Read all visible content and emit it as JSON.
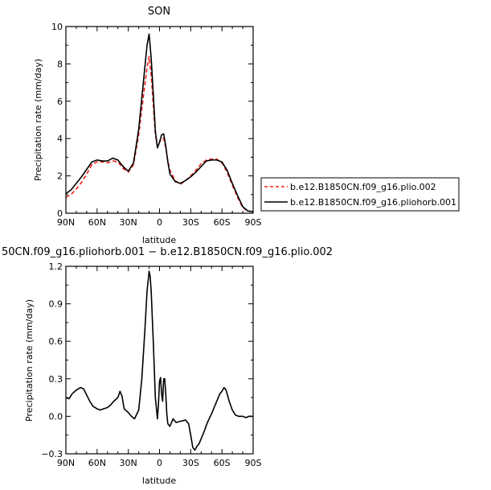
{
  "chart_data": [
    {
      "type": "line",
      "title": "SON",
      "xlabel": "latitude",
      "ylabel": "Precipitation rate (mm/day)",
      "xlim": [
        90,
        -90
      ],
      "ylim": [
        0,
        10
      ],
      "xticks": [
        90,
        60,
        30,
        0,
        -30,
        -60,
        -90
      ],
      "xtick_labels": [
        "90N",
        "60N",
        "30N",
        "0",
        "30S",
        "60S",
        "90S"
      ],
      "yticks": [
        0,
        2,
        4,
        6,
        8,
        10
      ],
      "ytick_labels": [
        "0",
        "2",
        "4",
        "6",
        "8",
        "10"
      ],
      "legend": {
        "placement": "right",
        "entries": [
          "b.e12.B1850CN.f09_g16.plio.002",
          "b.e12.B1850CN.f09_g16.pliohorb.001"
        ]
      },
      "series": [
        {
          "name": "b.e12.B1850CN.f09_g16.plio.002",
          "color": "#e8221b",
          "dash": "dashed",
          "x": [
            90,
            85,
            80,
            75,
            70,
            65,
            60,
            55,
            50,
            45,
            40,
            35,
            30,
            25,
            20,
            15,
            12,
            10,
            8,
            6,
            4,
            2,
            0,
            -2,
            -4,
            -6,
            -8,
            -10,
            -15,
            -20,
            -25,
            -30,
            -35,
            -40,
            -45,
            -50,
            -55,
            -60,
            -65,
            -70,
            -75,
            -80,
            -85,
            -90
          ],
          "y": [
            0.85,
            1.0,
            1.3,
            1.65,
            2.1,
            2.6,
            2.75,
            2.75,
            2.7,
            2.8,
            2.75,
            2.4,
            2.2,
            2.6,
            4.2,
            6.5,
            7.8,
            8.4,
            7.4,
            5.8,
            4.2,
            3.6,
            3.8,
            4.0,
            4.0,
            3.5,
            2.8,
            2.3,
            1.75,
            1.55,
            1.75,
            2.0,
            2.3,
            2.65,
            2.85,
            2.9,
            2.9,
            2.7,
            2.2,
            1.5,
            0.85,
            0.3,
            0.12,
            0.08
          ]
        },
        {
          "name": "b.e12.B1850CN.f09_g16.pliohorb.001",
          "color": "#000000",
          "dash": "solid",
          "x": [
            90,
            85,
            80,
            75,
            70,
            65,
            60,
            55,
            50,
            45,
            40,
            35,
            30,
            25,
            20,
            15,
            12,
            10,
            8,
            6,
            4,
            2,
            0,
            -2,
            -4,
            -6,
            -8,
            -10,
            -15,
            -20,
            -25,
            -30,
            -35,
            -40,
            -45,
            -50,
            -55,
            -60,
            -65,
            -70,
            -75,
            -80,
            -85,
            -90
          ],
          "y": [
            1.05,
            1.25,
            1.6,
            1.95,
            2.35,
            2.75,
            2.85,
            2.8,
            2.8,
            2.95,
            2.85,
            2.5,
            2.25,
            2.7,
            4.5,
            7.3,
            9.0,
            9.6,
            8.3,
            6.4,
            4.4,
            3.5,
            3.8,
            4.2,
            4.25,
            3.6,
            2.75,
            2.1,
            1.7,
            1.6,
            1.75,
            1.95,
            2.2,
            2.5,
            2.8,
            2.85,
            2.85,
            2.75,
            2.3,
            1.6,
            0.95,
            0.35,
            0.12,
            0.08
          ]
        }
      ]
    },
    {
      "type": "line",
      "title": "50CN.f09_g16.pliohorb.001 − b.e12.B1850CN.f09_g16.plio.002",
      "xlabel": "latitude",
      "ylabel": "Precipitation rate (mm/day)",
      "xlim": [
        90,
        -90
      ],
      "ylim": [
        -0.3,
        1.2
      ],
      "xticks": [
        90,
        60,
        30,
        0,
        -30,
        -60,
        -90
      ],
      "xtick_labels": [
        "90N",
        "60N",
        "30N",
        "0",
        "30S",
        "60S",
        "90S"
      ],
      "yticks": [
        -0.3,
        0.0,
        0.3,
        0.6,
        0.9,
        1.2
      ],
      "ytick_labels": [
        "−0.3",
        "0.0",
        "0.3",
        "0.6",
        "0.9",
        "1.2"
      ],
      "series": [
        {
          "color": "#000000",
          "dash": "solid",
          "x": [
            90,
            87,
            84,
            80,
            76,
            73,
            70,
            67,
            64,
            60,
            57,
            54,
            50,
            47,
            44,
            40,
            38,
            36,
            34,
            30,
            27,
            24,
            20,
            17,
            14,
            12,
            10,
            9,
            8,
            6,
            4,
            2,
            1,
            0,
            -1,
            -2,
            -3,
            -4,
            -5,
            -6,
            -7,
            -8,
            -10,
            -13,
            -16,
            -20,
            -25,
            -28,
            -30,
            -32,
            -34,
            -36,
            -38,
            -40,
            -43,
            -46,
            -50,
            -53,
            -56,
            -58,
            -60,
            -62,
            -64,
            -67,
            -70,
            -73,
            -76,
            -80,
            -83,
            -86,
            -90
          ],
          "y": [
            0.15,
            0.14,
            0.18,
            0.21,
            0.23,
            0.22,
            0.17,
            0.12,
            0.08,
            0.06,
            0.05,
            0.06,
            0.07,
            0.09,
            0.12,
            0.15,
            0.2,
            0.16,
            0.06,
            0.03,
            0.0,
            -0.02,
            0.05,
            0.3,
            0.7,
            1.0,
            1.16,
            1.12,
            1.0,
            0.6,
            0.15,
            -0.02,
            0.1,
            0.28,
            0.31,
            0.18,
            0.12,
            0.3,
            0.3,
            0.18,
            0.02,
            -0.06,
            -0.08,
            -0.02,
            -0.05,
            -0.04,
            -0.03,
            -0.06,
            -0.15,
            -0.25,
            -0.27,
            -0.24,
            -0.22,
            -0.18,
            -0.12,
            -0.05,
            0.02,
            0.08,
            0.14,
            0.18,
            0.2,
            0.23,
            0.21,
            0.12,
            0.05,
            0.01,
            0.0,
            0.0,
            -0.01,
            0.0,
            0.0
          ]
        }
      ]
    }
  ]
}
